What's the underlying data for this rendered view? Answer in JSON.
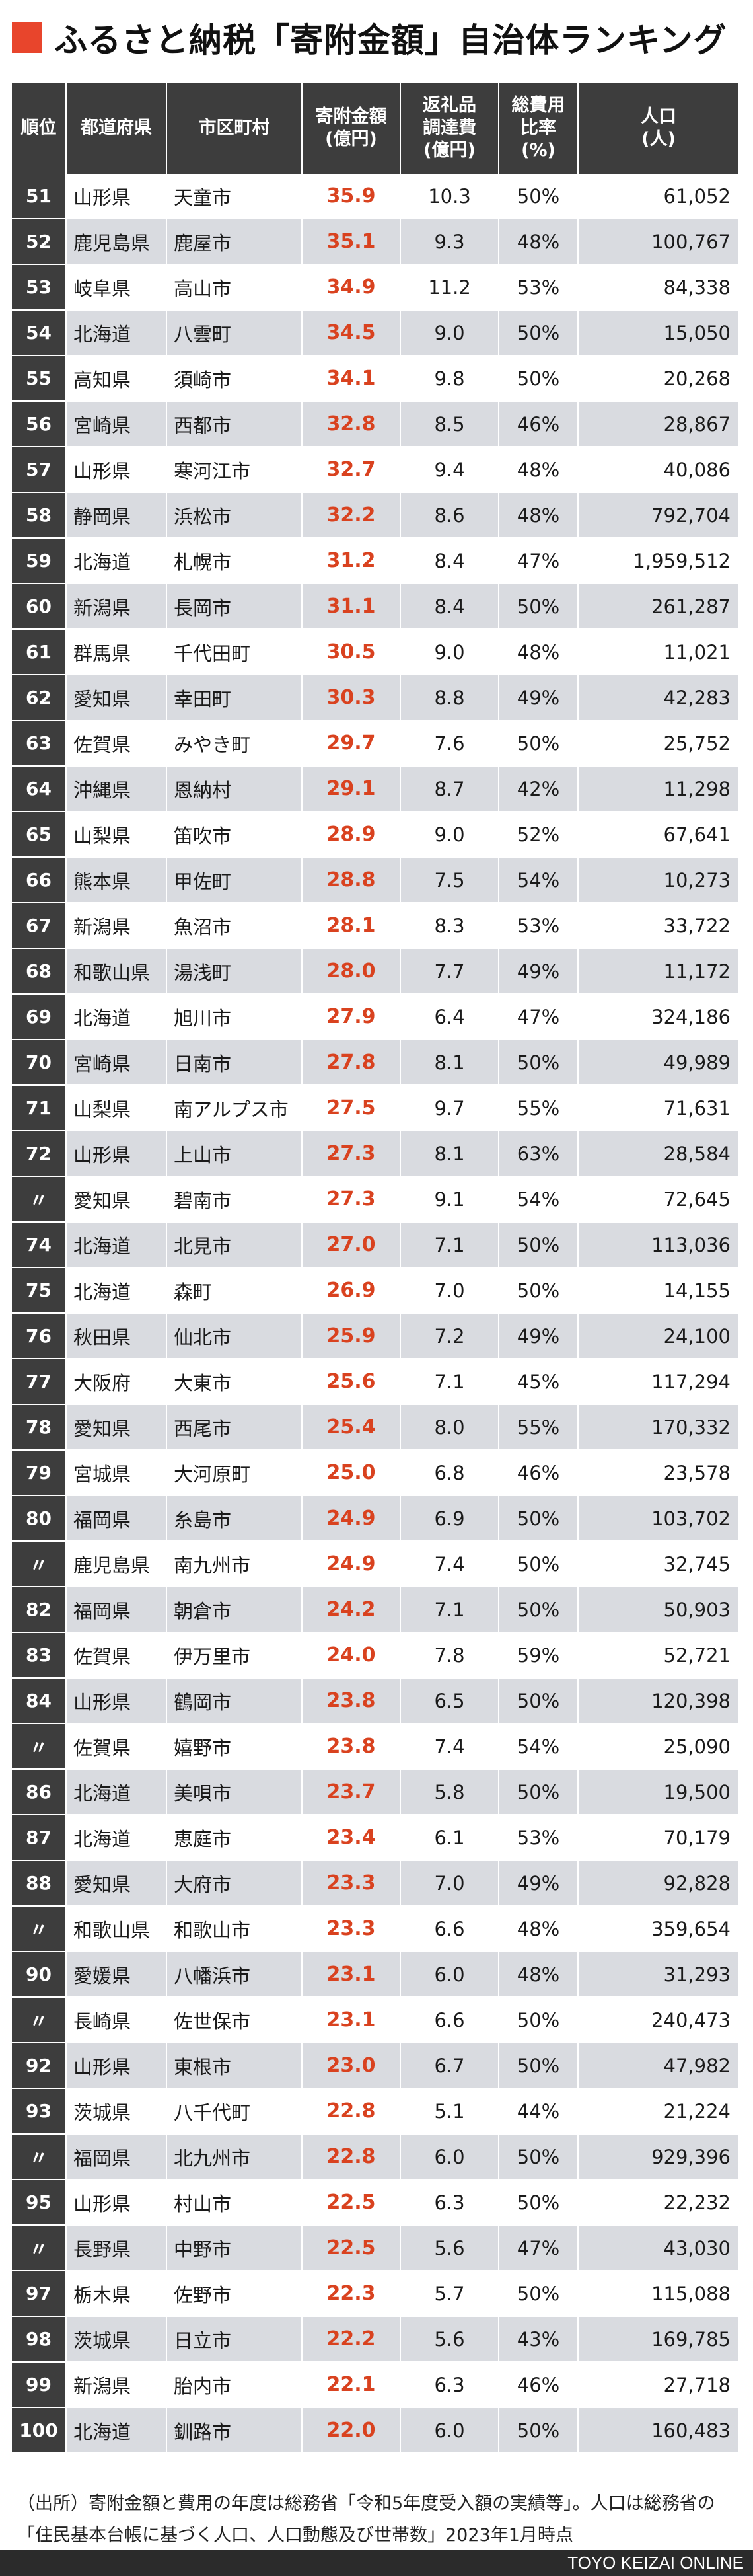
{
  "title": "ふるさと納税「寄附金額」自治体ランキング",
  "table": {
    "headers": {
      "rank": "順位",
      "pref": "都道府県",
      "city": "市区町村",
      "amount_l1": "寄附金額",
      "amount_l2": "(億円)",
      "cost_l1": "返礼品",
      "cost_l2": "調達費",
      "cost_l3": "(億円)",
      "ratio_l1": "総費用",
      "ratio_l2": "比率",
      "ratio_l3": "(%)",
      "pop_l1": "人口",
      "pop_l2": "(人)"
    },
    "rows": [
      {
        "rank": "51",
        "pref": "山形県",
        "city": "天童市",
        "amount": "35.9",
        "cost": "10.3",
        "ratio": "50%",
        "pop": "61,052"
      },
      {
        "rank": "52",
        "pref": "鹿児島県",
        "city": "鹿屋市",
        "amount": "35.1",
        "cost": "9.3",
        "ratio": "48%",
        "pop": "100,767"
      },
      {
        "rank": "53",
        "pref": "岐阜県",
        "city": "高山市",
        "amount": "34.9",
        "cost": "11.2",
        "ratio": "53%",
        "pop": "84,338"
      },
      {
        "rank": "54",
        "pref": "北海道",
        "city": "八雲町",
        "amount": "34.5",
        "cost": "9.0",
        "ratio": "50%",
        "pop": "15,050"
      },
      {
        "rank": "55",
        "pref": "高知県",
        "city": "須崎市",
        "amount": "34.1",
        "cost": "9.8",
        "ratio": "50%",
        "pop": "20,268"
      },
      {
        "rank": "56",
        "pref": "宮崎県",
        "city": "西都市",
        "amount": "32.8",
        "cost": "8.5",
        "ratio": "46%",
        "pop": "28,867"
      },
      {
        "rank": "57",
        "pref": "山形県",
        "city": "寒河江市",
        "amount": "32.7",
        "cost": "9.4",
        "ratio": "48%",
        "pop": "40,086"
      },
      {
        "rank": "58",
        "pref": "静岡県",
        "city": "浜松市",
        "amount": "32.2",
        "cost": "8.6",
        "ratio": "48%",
        "pop": "792,704"
      },
      {
        "rank": "59",
        "pref": "北海道",
        "city": "札幌市",
        "amount": "31.2",
        "cost": "8.4",
        "ratio": "47%",
        "pop": "1,959,512"
      },
      {
        "rank": "60",
        "pref": "新潟県",
        "city": "長岡市",
        "amount": "31.1",
        "cost": "8.4",
        "ratio": "50%",
        "pop": "261,287"
      },
      {
        "rank": "61",
        "pref": "群馬県",
        "city": "千代田町",
        "amount": "30.5",
        "cost": "9.0",
        "ratio": "48%",
        "pop": "11,021"
      },
      {
        "rank": "62",
        "pref": "愛知県",
        "city": "幸田町",
        "amount": "30.3",
        "cost": "8.8",
        "ratio": "49%",
        "pop": "42,283"
      },
      {
        "rank": "63",
        "pref": "佐賀県",
        "city": "みやき町",
        "amount": "29.7",
        "cost": "7.6",
        "ratio": "50%",
        "pop": "25,752"
      },
      {
        "rank": "64",
        "pref": "沖縄県",
        "city": "恩納村",
        "amount": "29.1",
        "cost": "8.7",
        "ratio": "42%",
        "pop": "11,298"
      },
      {
        "rank": "65",
        "pref": "山梨県",
        "city": "笛吹市",
        "amount": "28.9",
        "cost": "9.0",
        "ratio": "52%",
        "pop": "67,641"
      },
      {
        "rank": "66",
        "pref": "熊本県",
        "city": "甲佐町",
        "amount": "28.8",
        "cost": "7.5",
        "ratio": "54%",
        "pop": "10,273"
      },
      {
        "rank": "67",
        "pref": "新潟県",
        "city": "魚沼市",
        "amount": "28.1",
        "cost": "8.3",
        "ratio": "53%",
        "pop": "33,722"
      },
      {
        "rank": "68",
        "pref": "和歌山県",
        "city": "湯浅町",
        "amount": "28.0",
        "cost": "7.7",
        "ratio": "49%",
        "pop": "11,172"
      },
      {
        "rank": "69",
        "pref": "北海道",
        "city": "旭川市",
        "amount": "27.9",
        "cost": "6.4",
        "ratio": "47%",
        "pop": "324,186"
      },
      {
        "rank": "70",
        "pref": "宮崎県",
        "city": "日南市",
        "amount": "27.8",
        "cost": "8.1",
        "ratio": "50%",
        "pop": "49,989"
      },
      {
        "rank": "71",
        "pref": "山梨県",
        "city": "南アルプス市",
        "amount": "27.5",
        "cost": "9.7",
        "ratio": "55%",
        "pop": "71,631"
      },
      {
        "rank": "72",
        "pref": "山形県",
        "city": "上山市",
        "amount": "27.3",
        "cost": "8.1",
        "ratio": "63%",
        "pop": "28,584"
      },
      {
        "rank": "〃",
        "pref": "愛知県",
        "city": "碧南市",
        "amount": "27.3",
        "cost": "9.1",
        "ratio": "54%",
        "pop": "72,645"
      },
      {
        "rank": "74",
        "pref": "北海道",
        "city": "北見市",
        "amount": "27.0",
        "cost": "7.1",
        "ratio": "50%",
        "pop": "113,036"
      },
      {
        "rank": "75",
        "pref": "北海道",
        "city": "森町",
        "amount": "26.9",
        "cost": "7.0",
        "ratio": "50%",
        "pop": "14,155"
      },
      {
        "rank": "76",
        "pref": "秋田県",
        "city": "仙北市",
        "amount": "25.9",
        "cost": "7.2",
        "ratio": "49%",
        "pop": "24,100"
      },
      {
        "rank": "77",
        "pref": "大阪府",
        "city": "大東市",
        "amount": "25.6",
        "cost": "7.1",
        "ratio": "45%",
        "pop": "117,294"
      },
      {
        "rank": "78",
        "pref": "愛知県",
        "city": "西尾市",
        "amount": "25.4",
        "cost": "8.0",
        "ratio": "55%",
        "pop": "170,332"
      },
      {
        "rank": "79",
        "pref": "宮城県",
        "city": "大河原町",
        "amount": "25.0",
        "cost": "6.8",
        "ratio": "46%",
        "pop": "23,578"
      },
      {
        "rank": "80",
        "pref": "福岡県",
        "city": "糸島市",
        "amount": "24.9",
        "cost": "6.9",
        "ratio": "50%",
        "pop": "103,702"
      },
      {
        "rank": "〃",
        "pref": "鹿児島県",
        "city": "南九州市",
        "amount": "24.9",
        "cost": "7.4",
        "ratio": "50%",
        "pop": "32,745"
      },
      {
        "rank": "82",
        "pref": "福岡県",
        "city": "朝倉市",
        "amount": "24.2",
        "cost": "7.1",
        "ratio": "50%",
        "pop": "50,903"
      },
      {
        "rank": "83",
        "pref": "佐賀県",
        "city": "伊万里市",
        "amount": "24.0",
        "cost": "7.8",
        "ratio": "59%",
        "pop": "52,721"
      },
      {
        "rank": "84",
        "pref": "山形県",
        "city": "鶴岡市",
        "amount": "23.8",
        "cost": "6.5",
        "ratio": "50%",
        "pop": "120,398"
      },
      {
        "rank": "〃",
        "pref": "佐賀県",
        "city": "嬉野市",
        "amount": "23.8",
        "cost": "7.4",
        "ratio": "54%",
        "pop": "25,090"
      },
      {
        "rank": "86",
        "pref": "北海道",
        "city": "美唄市",
        "amount": "23.7",
        "cost": "5.8",
        "ratio": "50%",
        "pop": "19,500"
      },
      {
        "rank": "87",
        "pref": "北海道",
        "city": "恵庭市",
        "amount": "23.4",
        "cost": "6.1",
        "ratio": "53%",
        "pop": "70,179"
      },
      {
        "rank": "88",
        "pref": "愛知県",
        "city": "大府市",
        "amount": "23.3",
        "cost": "7.0",
        "ratio": "49%",
        "pop": "92,828"
      },
      {
        "rank": "〃",
        "pref": "和歌山県",
        "city": "和歌山市",
        "amount": "23.3",
        "cost": "6.6",
        "ratio": "48%",
        "pop": "359,654"
      },
      {
        "rank": "90",
        "pref": "愛媛県",
        "city": "八幡浜市",
        "amount": "23.1",
        "cost": "6.0",
        "ratio": "48%",
        "pop": "31,293"
      },
      {
        "rank": "〃",
        "pref": "長崎県",
        "city": "佐世保市",
        "amount": "23.1",
        "cost": "6.6",
        "ratio": "50%",
        "pop": "240,473"
      },
      {
        "rank": "92",
        "pref": "山形県",
        "city": "東根市",
        "amount": "23.0",
        "cost": "6.7",
        "ratio": "50%",
        "pop": "47,982"
      },
      {
        "rank": "93",
        "pref": "茨城県",
        "city": "八千代町",
        "amount": "22.8",
        "cost": "5.1",
        "ratio": "44%",
        "pop": "21,224"
      },
      {
        "rank": "〃",
        "pref": "福岡県",
        "city": "北九州市",
        "amount": "22.8",
        "cost": "6.0",
        "ratio": "50%",
        "pop": "929,396"
      },
      {
        "rank": "95",
        "pref": "山形県",
        "city": "村山市",
        "amount": "22.5",
        "cost": "6.3",
        "ratio": "50%",
        "pop": "22,232"
      },
      {
        "rank": "〃",
        "pref": "長野県",
        "city": "中野市",
        "amount": "22.5",
        "cost": "5.6",
        "ratio": "47%",
        "pop": "43,030"
      },
      {
        "rank": "97",
        "pref": "栃木県",
        "city": "佐野市",
        "amount": "22.3",
        "cost": "5.7",
        "ratio": "50%",
        "pop": "115,088"
      },
      {
        "rank": "98",
        "pref": "茨城県",
        "city": "日立市",
        "amount": "22.2",
        "cost": "5.6",
        "ratio": "43%",
        "pop": "169,785"
      },
      {
        "rank": "99",
        "pref": "新潟県",
        "city": "胎内市",
        "amount": "22.1",
        "cost": "6.3",
        "ratio": "46%",
        "pop": "27,718"
      },
      {
        "rank": "100",
        "pref": "北海道",
        "city": "釧路市",
        "amount": "22.0",
        "cost": "6.0",
        "ratio": "50%",
        "pop": "160,483"
      }
    ]
  },
  "footnote": "（出所）寄附金額と費用の年度は総務省「令和5年度受入額の実績等」。人口は総務省の「住民基本台帳に基づく人口、人口動態及び世帯数」2023年1月時点",
  "footer_brand": "TOYO KEIZAI ONLINE",
  "colors": {
    "accent": "#e8452c",
    "amount": "#d9421f",
    "header_bg": "#3d3d3d",
    "stripe": "#d9dbe0"
  }
}
